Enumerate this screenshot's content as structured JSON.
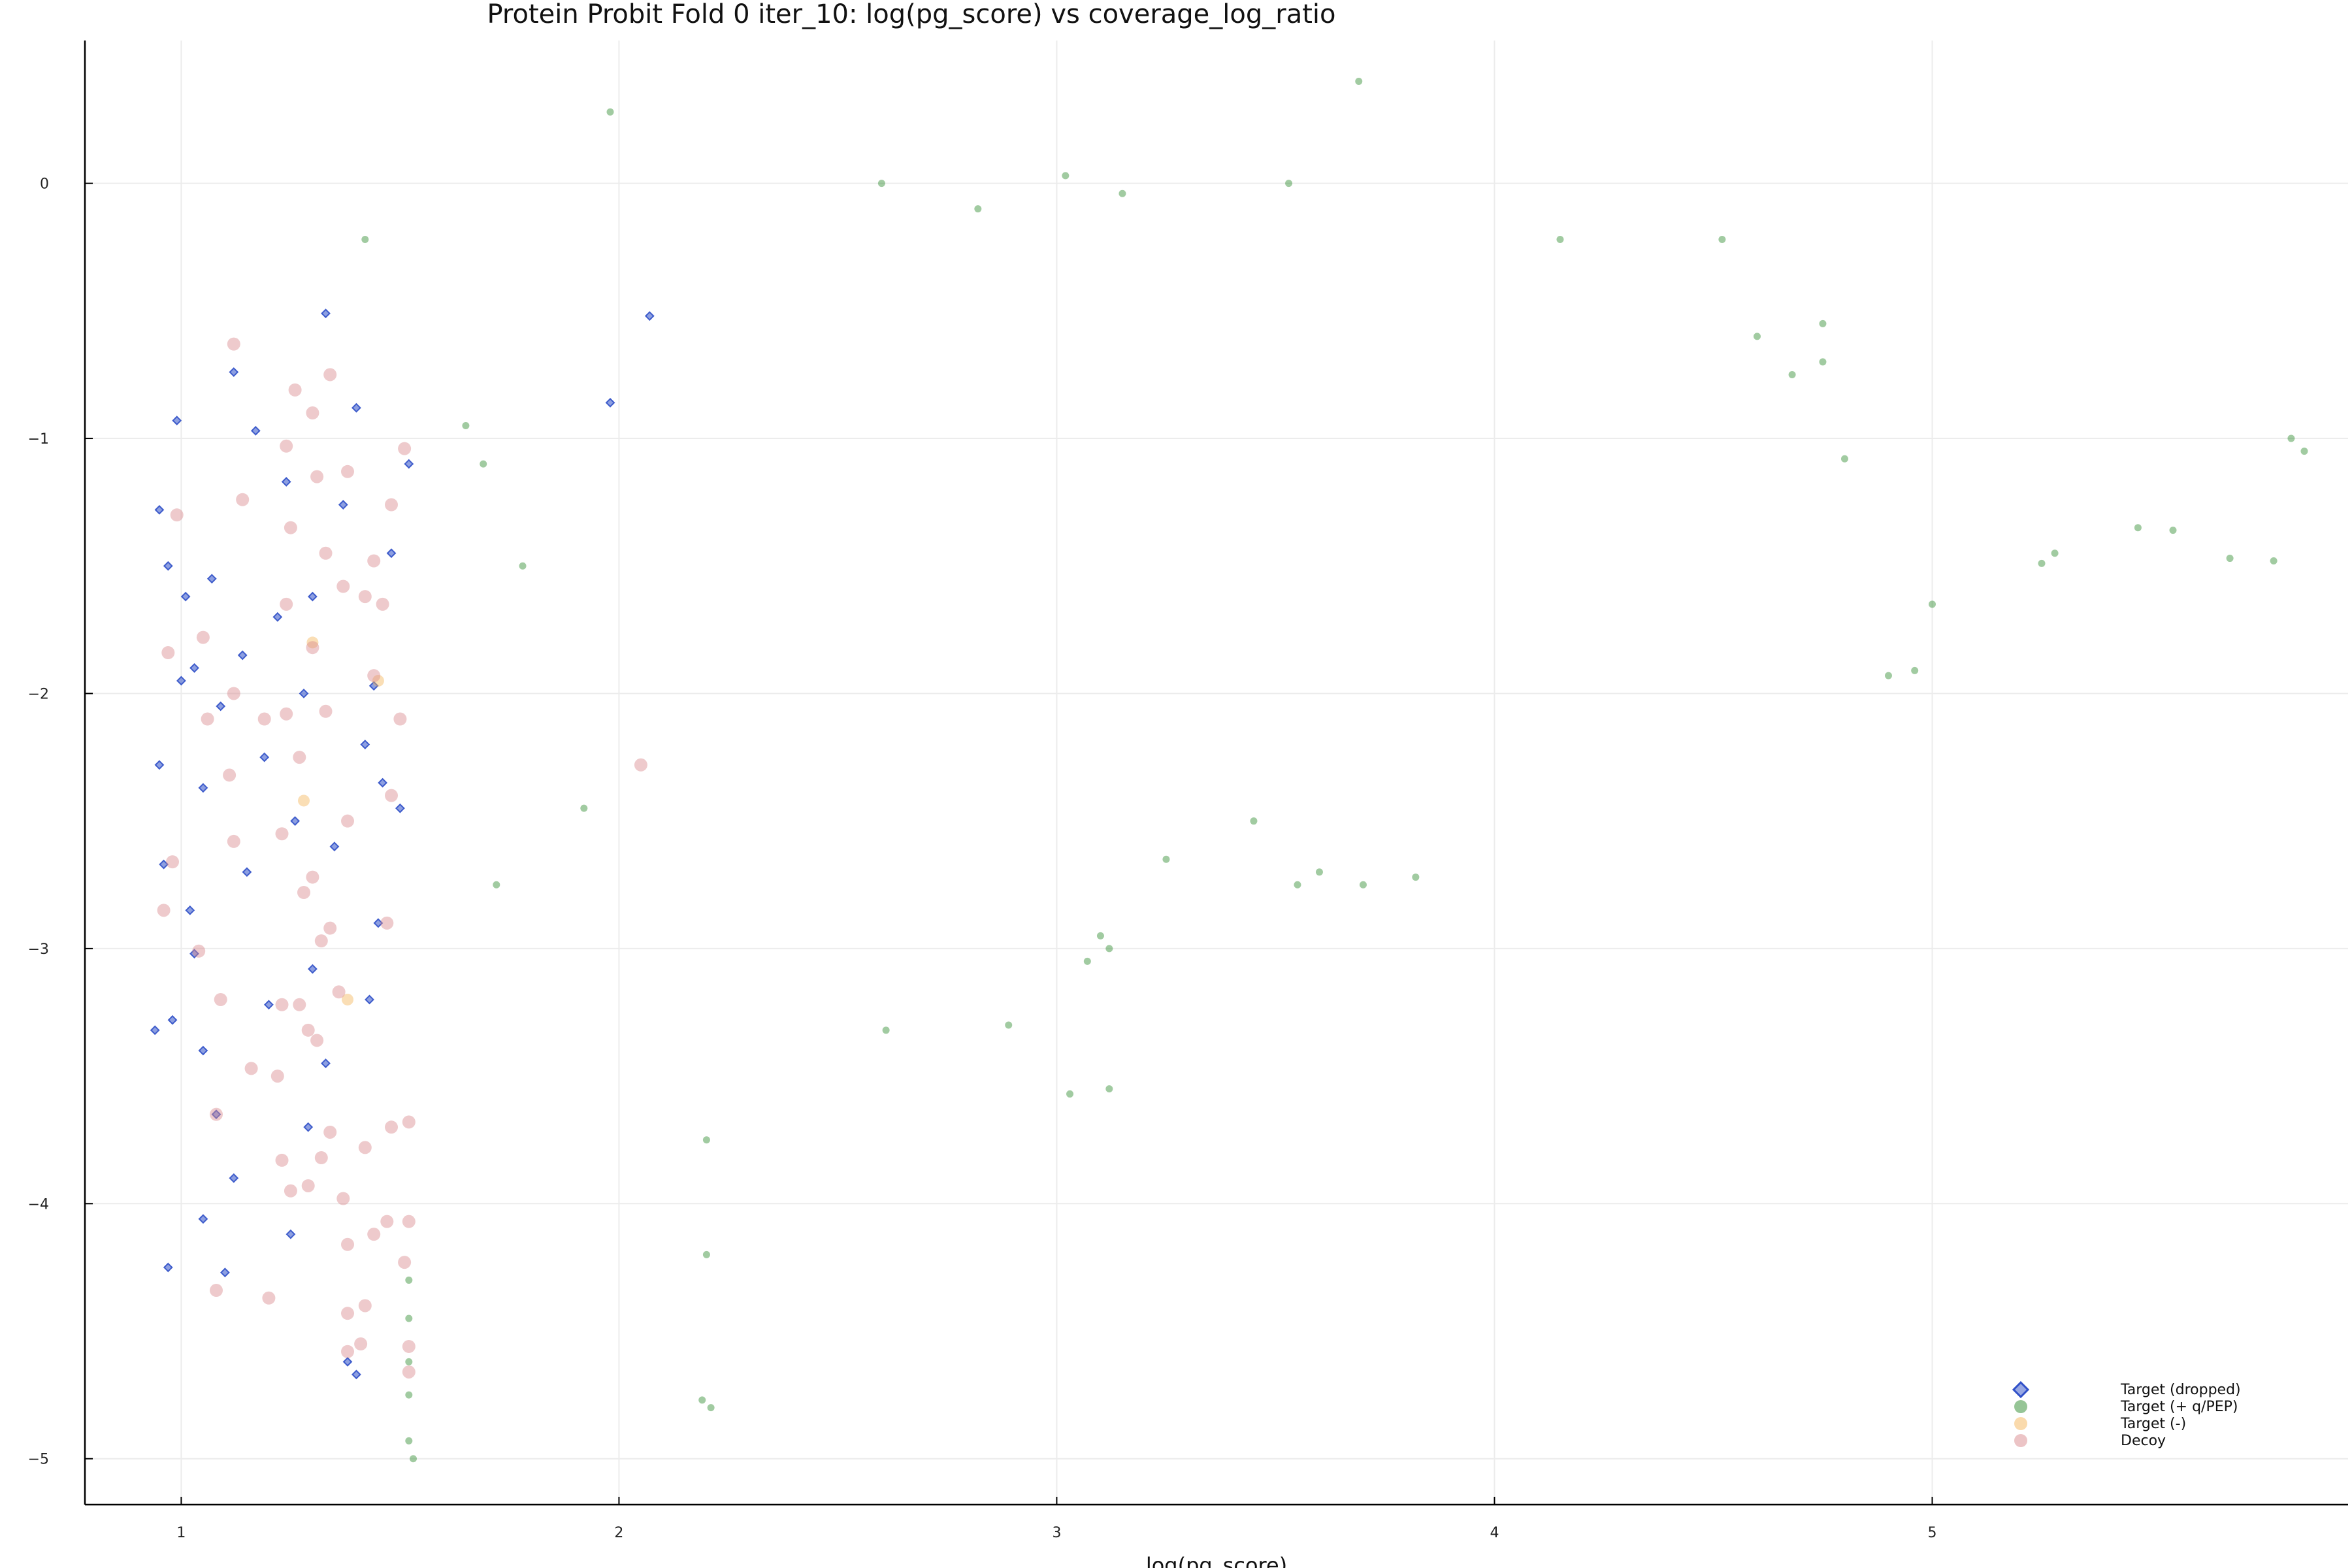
{
  "chart_data": {
    "type": "scatter",
    "title": "Protein Probit Fold 0 iter_10: log(pg_score) vs coverage_log_ratio",
    "xlabel": "log(pg_score)",
    "ylabel": "",
    "xlim": [
      0.78,
      5.95
    ],
    "ylim": [
      -5.18,
      0.56
    ],
    "xticks": [
      1,
      2,
      3,
      4,
      5
    ],
    "yticks": [
      0,
      -1,
      -2,
      -3,
      -4,
      -5
    ],
    "grid": true,
    "legend_position": "bottom-right",
    "series": [
      {
        "name": "Target (dropped)",
        "marker": "diamond",
        "color": "#3050c8",
        "points": [
          [
            0.95,
            -1.28
          ],
          [
            0.97,
            -1.5
          ],
          [
            0.99,
            -0.93
          ],
          [
            1.01,
            -1.62
          ],
          [
            1.03,
            -1.9
          ],
          [
            1.05,
            -2.37
          ],
          [
            1.07,
            -1.55
          ],
          [
            1.09,
            -2.05
          ],
          [
            1.12,
            -0.74
          ],
          [
            1.14,
            -1.85
          ],
          [
            1.17,
            -0.97
          ],
          [
            1.19,
            -2.25
          ],
          [
            1.22,
            -1.7
          ],
          [
            1.24,
            -1.17
          ],
          [
            1.26,
            -2.5
          ],
          [
            1.28,
            -2.0
          ],
          [
            1.3,
            -1.62
          ],
          [
            1.33,
            -0.51
          ],
          [
            1.35,
            -2.6
          ],
          [
            1.37,
            -1.26
          ],
          [
            1.4,
            -0.88
          ],
          [
            1.42,
            -2.2
          ],
          [
            1.44,
            -1.97
          ],
          [
            1.46,
            -2.35
          ],
          [
            1.48,
            -1.45
          ],
          [
            1.5,
            -2.45
          ],
          [
            1.52,
            -1.1
          ],
          [
            0.96,
            -2.67
          ],
          [
            0.94,
            -3.32
          ],
          [
            0.98,
            -3.28
          ],
          [
            1.03,
            -3.02
          ],
          [
            1.05,
            -3.4
          ],
          [
            1.08,
            -3.65
          ],
          [
            1.12,
            -3.9
          ],
          [
            0.97,
            -4.25
          ],
          [
            1.05,
            -4.06
          ],
          [
            1.1,
            -4.27
          ],
          [
            1.25,
            -4.12
          ],
          [
            1.29,
            -3.7
          ],
          [
            1.33,
            -3.45
          ],
          [
            1.38,
            -4.62
          ],
          [
            1.4,
            -4.67
          ],
          [
            1.43,
            -3.2
          ],
          [
            1.45,
            -2.9
          ],
          [
            1.3,
            -3.08
          ],
          [
            1.2,
            -3.22
          ],
          [
            2.07,
            -0.52
          ],
          [
            1.98,
            -0.86
          ],
          [
            1.15,
            -2.7
          ],
          [
            1.02,
            -2.85
          ],
          [
            0.95,
            -2.28
          ],
          [
            1.0,
            -1.95
          ]
        ]
      },
      {
        "name": "Target (+ q/PEP)",
        "marker": "circle",
        "color": "#2e8b2e",
        "points": [
          [
            1.98,
            0.28
          ],
          [
            3.69,
            0.4
          ],
          [
            2.6,
            0.0
          ],
          [
            3.53,
            0.0
          ],
          [
            3.02,
            0.03
          ],
          [
            3.15,
            -0.04
          ],
          [
            2.82,
            -0.1
          ],
          [
            1.42,
            -0.22
          ],
          [
            4.52,
            -0.22
          ],
          [
            4.15,
            -0.22
          ],
          [
            5.82,
            -1.0
          ],
          [
            5.85,
            -1.05
          ],
          [
            5.78,
            -1.48
          ],
          [
            5.68,
            -1.47
          ],
          [
            5.55,
            -1.36
          ],
          [
            5.47,
            -1.35
          ],
          [
            5.28,
            -1.45
          ],
          [
            5.25,
            -1.49
          ],
          [
            5.0,
            -1.65
          ],
          [
            4.96,
            -1.91
          ],
          [
            4.9,
            -1.93
          ],
          [
            4.8,
            -1.08
          ],
          [
            4.75,
            -0.55
          ],
          [
            4.75,
            -0.7
          ],
          [
            4.68,
            -0.75
          ],
          [
            4.6,
            -0.6
          ],
          [
            3.7,
            -2.75
          ],
          [
            3.6,
            -2.7
          ],
          [
            3.55,
            -2.75
          ],
          [
            3.82,
            -2.72
          ],
          [
            3.45,
            -2.5
          ],
          [
            3.25,
            -2.65
          ],
          [
            3.12,
            -3.0
          ],
          [
            3.1,
            -2.95
          ],
          [
            3.07,
            -3.05
          ],
          [
            3.03,
            -3.57
          ],
          [
            3.12,
            -3.55
          ],
          [
            2.89,
            -3.3
          ],
          [
            2.61,
            -3.32
          ],
          [
            2.2,
            -4.2
          ],
          [
            2.21,
            -4.8
          ],
          [
            2.19,
            -4.77
          ],
          [
            2.2,
            -3.75
          ],
          [
            1.53,
            -5.0
          ],
          [
            1.52,
            -4.93
          ],
          [
            1.52,
            -4.75
          ],
          [
            1.52,
            -4.62
          ],
          [
            1.52,
            -4.45
          ],
          [
            1.52,
            -4.3
          ],
          [
            1.72,
            -2.75
          ],
          [
            1.78,
            -1.5
          ],
          [
            1.69,
            -1.1
          ],
          [
            1.65,
            -0.95
          ],
          [
            1.92,
            -2.45
          ]
        ]
      },
      {
        "name": "Target (-)",
        "marker": "circle",
        "color": "#f5b55a",
        "points": [
          [
            1.28,
            -2.42
          ],
          [
            1.45,
            -1.95
          ],
          [
            1.38,
            -3.2
          ],
          [
            1.3,
            -1.8
          ]
        ]
      },
      {
        "name": "Decoy",
        "marker": "circle",
        "color": "#d9898d",
        "points": [
          [
            1.12,
            -0.63
          ],
          [
            1.34,
            -0.75
          ],
          [
            1.26,
            -0.81
          ],
          [
            1.3,
            -0.9
          ],
          [
            1.24,
            -1.03
          ],
          [
            1.51,
            -1.04
          ],
          [
            1.38,
            -1.13
          ],
          [
            1.31,
            -1.15
          ],
          [
            0.99,
            -1.3
          ],
          [
            1.14,
            -1.24
          ],
          [
            1.25,
            -1.35
          ],
          [
            1.48,
            -1.26
          ],
          [
            1.44,
            -1.48
          ],
          [
            1.33,
            -1.45
          ],
          [
            1.24,
            -1.65
          ],
          [
            1.37,
            -1.58
          ],
          [
            1.42,
            -1.62
          ],
          [
            1.46,
            -1.65
          ],
          [
            1.05,
            -1.78
          ],
          [
            0.97,
            -1.84
          ],
          [
            1.3,
            -1.82
          ],
          [
            1.44,
            -1.93
          ],
          [
            1.12,
            -2.0
          ],
          [
            1.24,
            -2.08
          ],
          [
            1.33,
            -2.07
          ],
          [
            1.19,
            -2.1
          ],
          [
            1.06,
            -2.1
          ],
          [
            1.5,
            -2.1
          ],
          [
            1.11,
            -2.32
          ],
          [
            1.27,
            -2.25
          ],
          [
            2.05,
            -2.28
          ],
          [
            1.48,
            -2.4
          ],
          [
            1.12,
            -2.58
          ],
          [
            1.23,
            -2.55
          ],
          [
            1.38,
            -2.5
          ],
          [
            0.98,
            -2.66
          ],
          [
            1.28,
            -2.78
          ],
          [
            1.3,
            -2.72
          ],
          [
            0.96,
            -2.85
          ],
          [
            1.34,
            -2.92
          ],
          [
            1.47,
            -2.9
          ],
          [
            1.32,
            -2.97
          ],
          [
            1.04,
            -3.01
          ],
          [
            1.36,
            -3.17
          ],
          [
            1.09,
            -3.2
          ],
          [
            1.23,
            -3.22
          ],
          [
            1.27,
            -3.22
          ],
          [
            1.29,
            -3.32
          ],
          [
            1.31,
            -3.36
          ],
          [
            1.16,
            -3.47
          ],
          [
            1.22,
            -3.5
          ],
          [
            1.52,
            -3.68
          ],
          [
            1.08,
            -3.65
          ],
          [
            1.34,
            -3.72
          ],
          [
            1.48,
            -3.7
          ],
          [
            1.42,
            -3.78
          ],
          [
            1.32,
            -3.82
          ],
          [
            1.23,
            -3.83
          ],
          [
            1.25,
            -3.95
          ],
          [
            1.29,
            -3.93
          ],
          [
            1.37,
            -3.98
          ],
          [
            1.47,
            -4.07
          ],
          [
            1.52,
            -4.07
          ],
          [
            1.44,
            -4.12
          ],
          [
            1.38,
            -4.16
          ],
          [
            1.51,
            -4.23
          ],
          [
            1.08,
            -4.34
          ],
          [
            1.2,
            -4.37
          ],
          [
            1.42,
            -4.4
          ],
          [
            1.38,
            -4.43
          ],
          [
            1.41,
            -4.55
          ],
          [
            1.38,
            -4.58
          ],
          [
            1.52,
            -4.56
          ],
          [
            1.52,
            -4.66
          ]
        ]
      }
    ]
  }
}
